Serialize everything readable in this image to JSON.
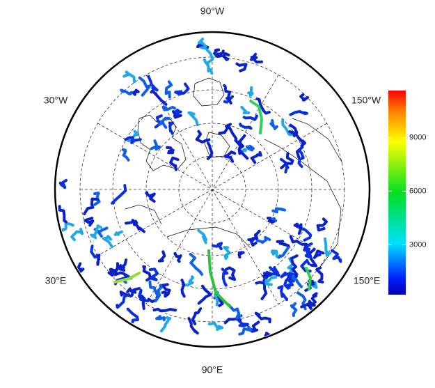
{
  "labels": {
    "top": "90°W",
    "upper_left": "30°W",
    "upper_right": "150°W",
    "lower_left": "30°E",
    "lower_right": "150°E",
    "bottom": "90°E"
  },
  "colorbar": {
    "lim": [
      200,
      11650
    ],
    "ticks": [
      3000,
      6000,
      9000
    ]
  }
}
